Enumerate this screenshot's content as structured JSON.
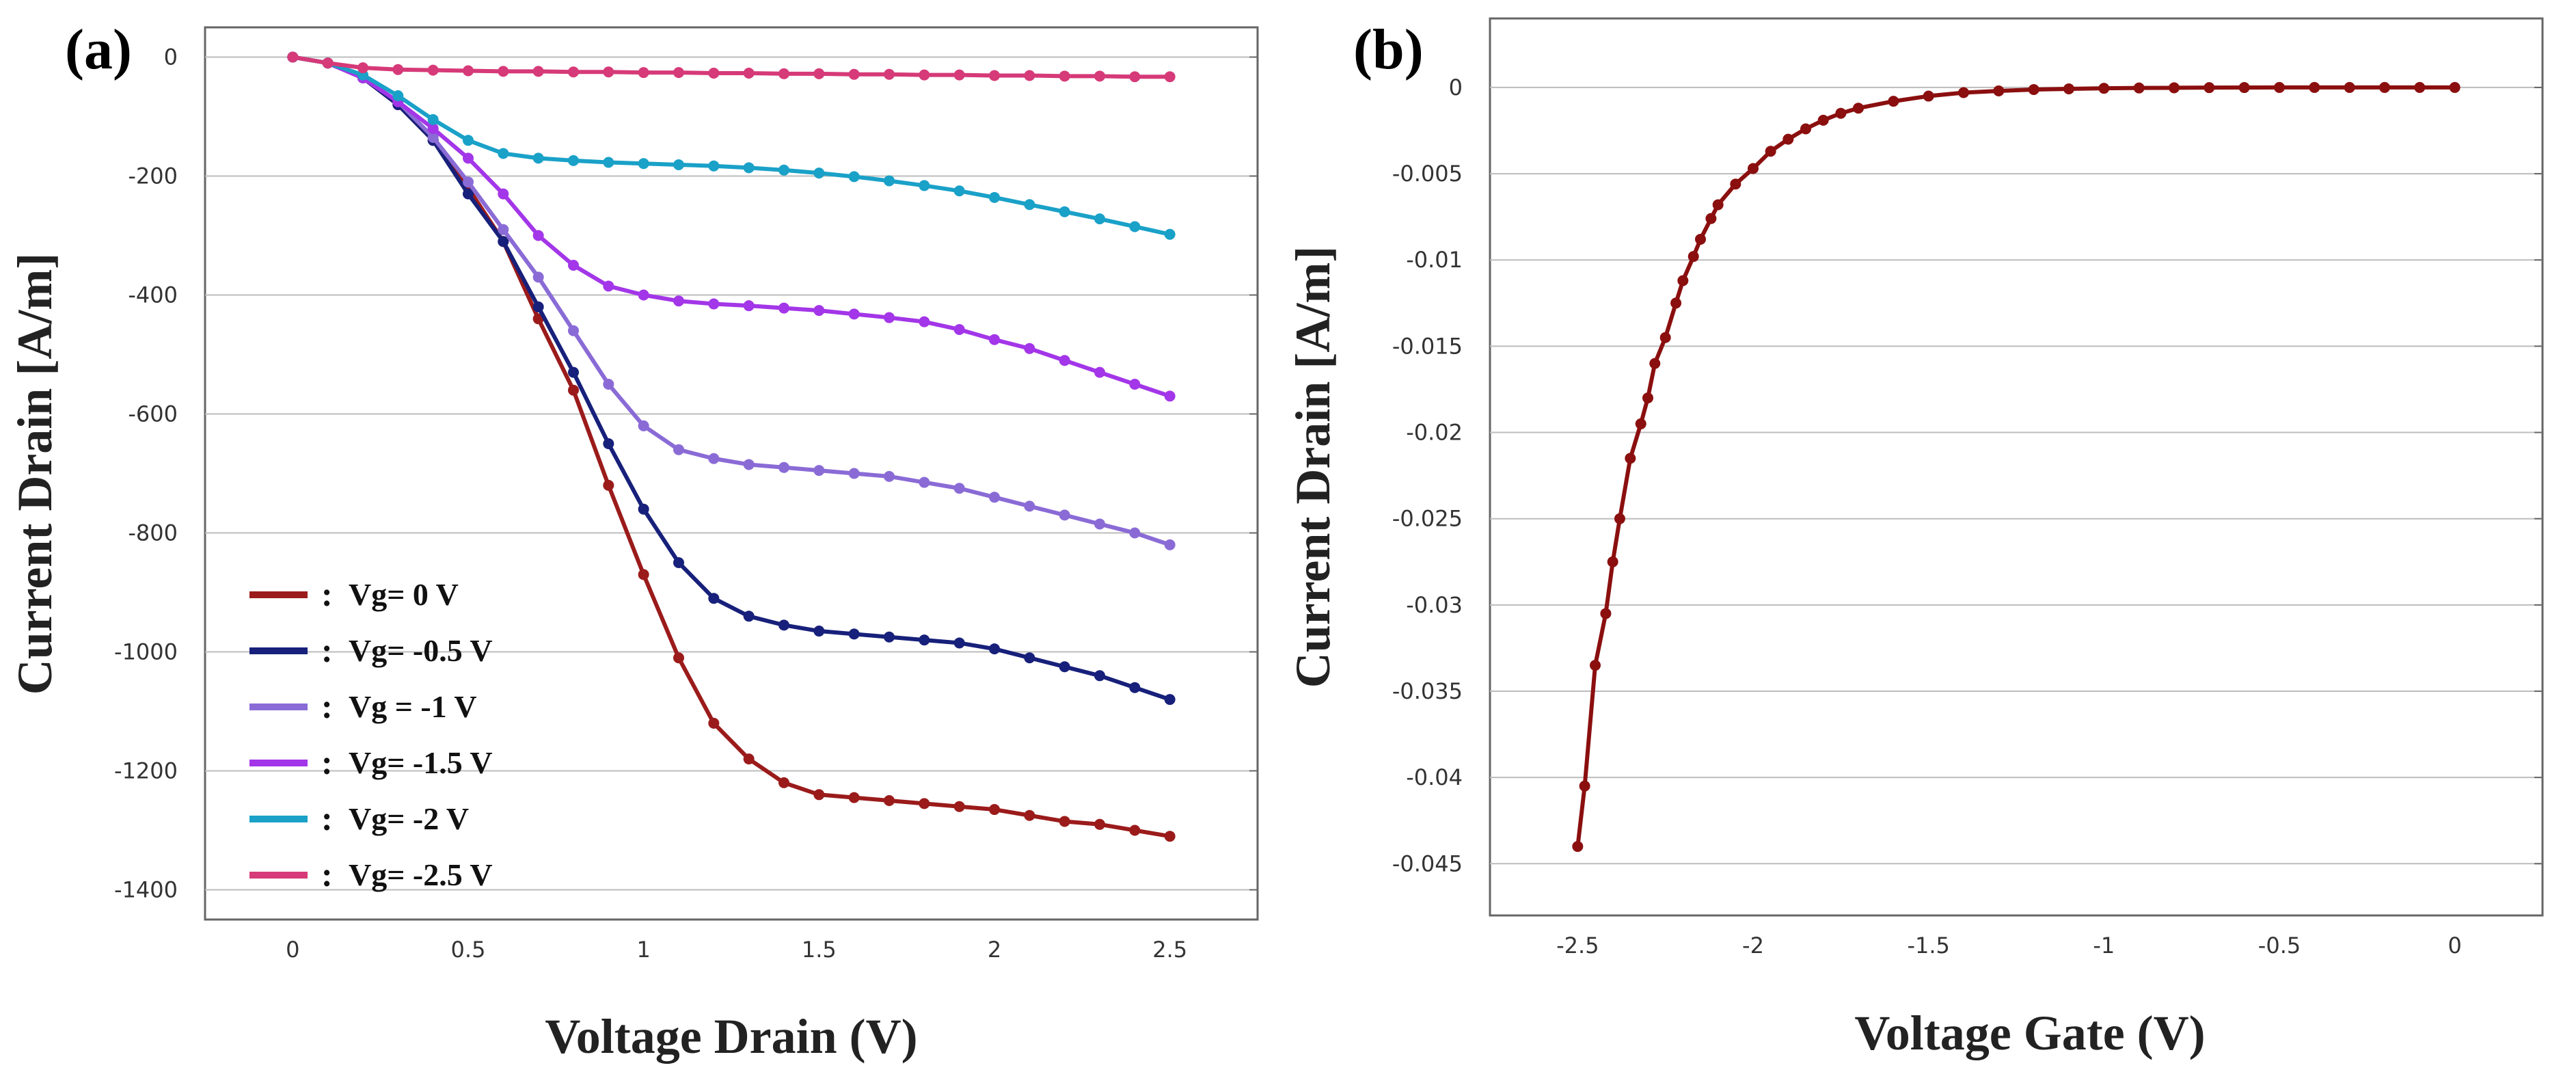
{
  "chart_data": [
    {
      "panel": "(a)",
      "type": "line",
      "xlabel": "Voltage Drain (V)",
      "ylabel": "Current Drain [A/m]",
      "xlim": [
        -0.25,
        2.75
      ],
      "ylim": [
        -1450,
        50
      ],
      "xticks": [
        0,
        0.5,
        1,
        1.5,
        2,
        2.5
      ],
      "xtick_labels": [
        "0",
        "0.5",
        "1",
        "1.5",
        "2",
        "2.5"
      ],
      "yticks": [
        0,
        -200,
        -400,
        -600,
        -800,
        -1000,
        -1200,
        -1400
      ],
      "ytick_labels": [
        "0",
        "-200",
        "-400",
        "-600",
        "-800",
        "-1000",
        "-1200",
        "-1400"
      ],
      "grid": "horizontal",
      "legend_position": "bottom-left",
      "series": [
        {
          "name": "Vg=  0 V",
          "color": "#9b1b1b",
          "x": [
            0,
            0.1,
            0.2,
            0.3,
            0.4,
            0.5,
            0.6,
            0.7,
            0.8,
            0.9,
            1.0,
            1.1,
            1.2,
            1.3,
            1.4,
            1.5,
            1.6,
            1.7,
            1.8,
            1.9,
            2.0,
            2.1,
            2.2,
            2.3,
            2.4,
            2.5
          ],
          "y": [
            0,
            -10,
            -35,
            -80,
            -140,
            -220,
            -310,
            -440,
            -560,
            -720,
            -870,
            -1010,
            -1120,
            -1180,
            -1220,
            -1240,
            -1245,
            -1250,
            -1255,
            -1260,
            -1265,
            -1275,
            -1285,
            -1290,
            -1300,
            -1310
          ]
        },
        {
          "name": "Vg= -0.5 V",
          "color": "#17207a",
          "x": [
            0,
            0.1,
            0.2,
            0.3,
            0.4,
            0.5,
            0.6,
            0.7,
            0.8,
            0.9,
            1.0,
            1.1,
            1.2,
            1.3,
            1.4,
            1.5,
            1.6,
            1.7,
            1.8,
            1.9,
            2.0,
            2.1,
            2.2,
            2.3,
            2.4,
            2.5
          ],
          "y": [
            0,
            -10,
            -35,
            -80,
            -140,
            -230,
            -310,
            -420,
            -530,
            -650,
            -760,
            -850,
            -910,
            -940,
            -955,
            -965,
            -970,
            -975,
            -980,
            -985,
            -995,
            -1010,
            -1025,
            -1040,
            -1060,
            -1080
          ]
        },
        {
          "name": "Vg = -1 V",
          "color": "#8a6bd6",
          "x": [
            0,
            0.1,
            0.2,
            0.3,
            0.4,
            0.5,
            0.6,
            0.7,
            0.8,
            0.9,
            1.0,
            1.1,
            1.2,
            1.3,
            1.4,
            1.5,
            1.6,
            1.7,
            1.8,
            1.9,
            2.0,
            2.1,
            2.2,
            2.3,
            2.4,
            2.5
          ],
          "y": [
            0,
            -10,
            -35,
            -75,
            -135,
            -210,
            -290,
            -370,
            -460,
            -550,
            -620,
            -660,
            -675,
            -685,
            -690,
            -695,
            -700,
            -705,
            -715,
            -725,
            -740,
            -755,
            -770,
            -785,
            -800,
            -820
          ]
        },
        {
          "name": "Vg= -1.5 V",
          "color": "#a336e8",
          "x": [
            0,
            0.1,
            0.2,
            0.3,
            0.4,
            0.5,
            0.6,
            0.7,
            0.8,
            0.9,
            1.0,
            1.1,
            1.2,
            1.3,
            1.4,
            1.5,
            1.6,
            1.7,
            1.8,
            1.9,
            2.0,
            2.1,
            2.2,
            2.3,
            2.4,
            2.5
          ],
          "y": [
            0,
            -10,
            -35,
            -75,
            -120,
            -170,
            -230,
            -300,
            -350,
            -385,
            -400,
            -410,
            -415,
            -418,
            -422,
            -426,
            -432,
            -438,
            -445,
            -458,
            -475,
            -490,
            -510,
            -530,
            -550,
            -570
          ]
        },
        {
          "name": "Vg= -2 V",
          "color": "#1aa1c8",
          "x": [
            0,
            0.1,
            0.2,
            0.3,
            0.4,
            0.5,
            0.6,
            0.7,
            0.8,
            0.9,
            1.0,
            1.1,
            1.2,
            1.3,
            1.4,
            1.5,
            1.6,
            1.7,
            1.8,
            1.9,
            2.0,
            2.1,
            2.2,
            2.3,
            2.4,
            2.5
          ],
          "y": [
            0,
            -10,
            -30,
            -65,
            -105,
            -140,
            -162,
            -170,
            -174,
            -177,
            -179,
            -181,
            -183,
            -186,
            -190,
            -195,
            -201,
            -208,
            -216,
            -225,
            -236,
            -248,
            -260,
            -272,
            -285,
            -298
          ]
        },
        {
          "name": "Vg= -2.5 V",
          "color": "#d63a78",
          "x": [
            0,
            0.1,
            0.2,
            0.3,
            0.4,
            0.5,
            0.6,
            0.7,
            0.8,
            0.9,
            1.0,
            1.1,
            1.2,
            1.3,
            1.4,
            1.5,
            1.6,
            1.7,
            1.8,
            1.9,
            2.0,
            2.1,
            2.2,
            2.3,
            2.4,
            2.5
          ],
          "y": [
            0,
            -10,
            -18,
            -21,
            -22,
            -23,
            -24,
            -24,
            -25,
            -25,
            -26,
            -26,
            -27,
            -27,
            -28,
            -28,
            -29,
            -29,
            -30,
            -30,
            -31,
            -31,
            -32,
            -32,
            -33,
            -33
          ]
        }
      ]
    },
    {
      "panel": "(b)",
      "type": "line",
      "xlabel": "Voltage Gate (V)",
      "ylabel": "Current Drain [A/m]",
      "xlim": [
        -2.75,
        0.25
      ],
      "ylim": [
        -0.048,
        0.004
      ],
      "xticks": [
        -2.5,
        -2,
        -1.5,
        -1,
        -0.5,
        0
      ],
      "xtick_labels": [
        "-2.5",
        "-2",
        "-1.5",
        "-1",
        "-0.5",
        "0"
      ],
      "yticks": [
        0,
        -0.005,
        -0.01,
        -0.015,
        -0.02,
        -0.025,
        -0.03,
        -0.035,
        -0.04,
        -0.045
      ],
      "ytick_labels": [
        "0",
        "-0.005",
        "-0.01",
        "-0.015",
        "-0.02",
        "-0.025",
        "-0.03",
        "-0.035",
        "-0.04",
        "-0.045"
      ],
      "grid": "horizontal",
      "series": [
        {
          "color": "#8b0f0f",
          "x": [
            -2.5,
            -2.48,
            -2.45,
            -2.42,
            -2.4,
            -2.38,
            -2.35,
            -2.32,
            -2.3,
            -2.28,
            -2.25,
            -2.22,
            -2.2,
            -2.17,
            -2.15,
            -2.12,
            -2.1,
            -2.05,
            -2.0,
            -1.95,
            -1.9,
            -1.85,
            -1.8,
            -1.75,
            -1.7,
            -1.6,
            -1.5,
            -1.4,
            -1.3,
            -1.2,
            -1.1,
            -1.0,
            -0.9,
            -0.8,
            -0.7,
            -0.6,
            -0.5,
            -0.4,
            -0.3,
            -0.2,
            -0.1,
            0
          ],
          "y": [
            -0.044,
            -0.0405,
            -0.0335,
            -0.0305,
            -0.0275,
            -0.025,
            -0.0215,
            -0.0195,
            -0.018,
            -0.016,
            -0.0145,
            -0.0125,
            -0.0112,
            -0.0098,
            -0.0088,
            -0.0076,
            -0.0068,
            -0.0056,
            -0.0047,
            -0.0037,
            -0.003,
            -0.0024,
            -0.0019,
            -0.0015,
            -0.0012,
            -0.0008,
            -0.0005,
            -0.0003,
            -0.0002,
            -0.00012,
            -8e-05,
            -5e-05,
            -3e-05,
            -2e-05,
            -1e-05,
            -5e-06,
            0,
            0,
            0,
            0,
            0,
            0
          ]
        }
      ]
    }
  ]
}
